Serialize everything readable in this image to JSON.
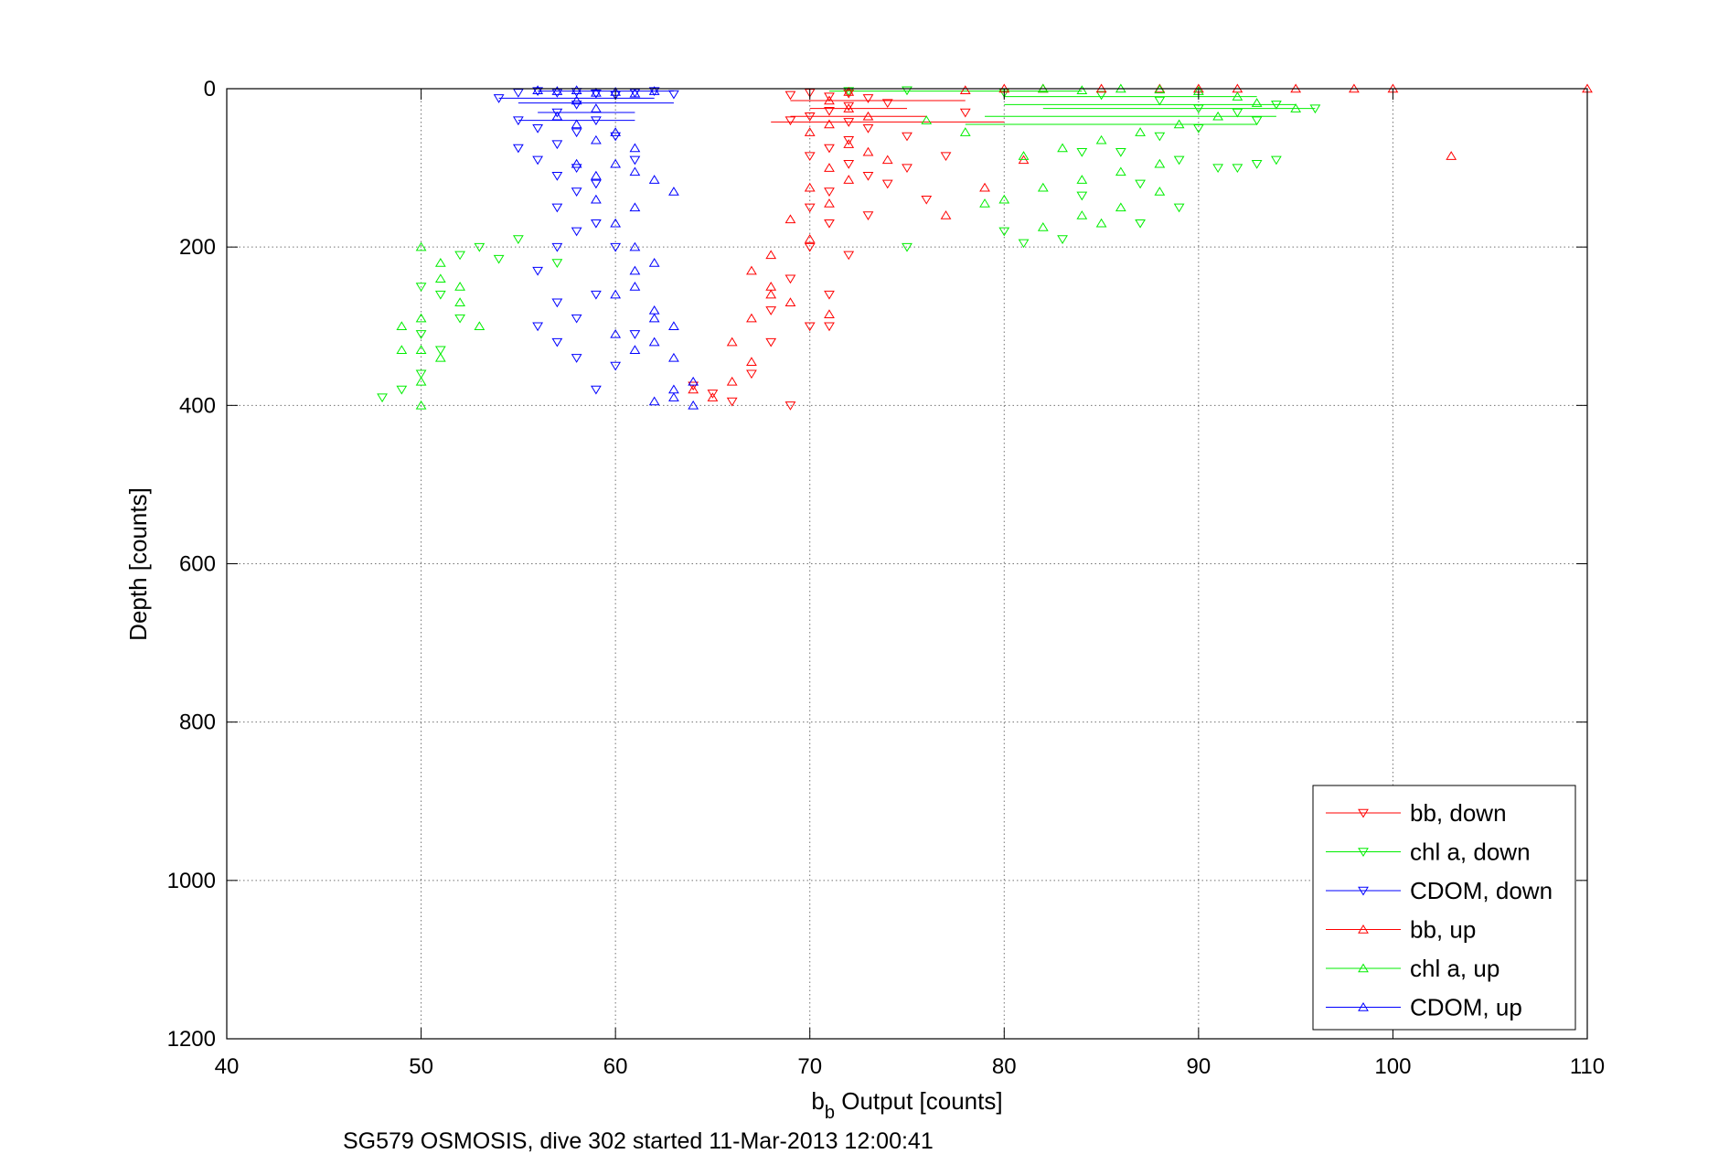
{
  "chart_data": {
    "type": "scatter",
    "title": "",
    "xlabel_main": "b",
    "xlabel_sub": "b",
    "xlabel_rest": " Output [counts]",
    "ylabel": "Depth [counts]",
    "caption": "SG579 OSMOSIS, dive 302 started 11-Mar-2013 12:00:41",
    "xlim": [
      40,
      110
    ],
    "ylim": [
      0,
      1200
    ],
    "y_reversed": true,
    "xticks": [
      "40",
      "50",
      "60",
      "70",
      "80",
      "90",
      "100",
      "110"
    ],
    "yticks": [
      "0",
      "200",
      "400",
      "600",
      "800",
      "1000",
      "1200"
    ],
    "grid": true,
    "legend_position": "bottom-right",
    "series": [
      {
        "name": "bb, down",
        "color": "#ff0000",
        "marker": "triangle-down",
        "points": [
          [
            69,
            8
          ],
          [
            70,
            5
          ],
          [
            71,
            10
          ],
          [
            72,
            6
          ],
          [
            73,
            12
          ],
          [
            74,
            18
          ],
          [
            72,
            22
          ],
          [
            71,
            28
          ],
          [
            70,
            35
          ],
          [
            69,
            40
          ],
          [
            72,
            42
          ],
          [
            73,
            50
          ],
          [
            72,
            65
          ],
          [
            71,
            75
          ],
          [
            70,
            85
          ],
          [
            72,
            95
          ],
          [
            73,
            110
          ],
          [
            71,
            130
          ],
          [
            70,
            150
          ],
          [
            71,
            170
          ],
          [
            70,
            200
          ],
          [
            69,
            240
          ],
          [
            68,
            280
          ],
          [
            68,
            320
          ],
          [
            67,
            360
          ],
          [
            66,
            395
          ],
          [
            65,
            385
          ],
          [
            64,
            375
          ],
          [
            69,
            400
          ],
          [
            70,
            300
          ],
          [
            71,
            260
          ],
          [
            72,
            210
          ],
          [
            73,
            160
          ],
          [
            74,
            120
          ],
          [
            75,
            100
          ],
          [
            76,
            140
          ],
          [
            77,
            85
          ],
          [
            71,
            300
          ],
          [
            75,
            60
          ],
          [
            78,
            30
          ]
        ]
      },
      {
        "name": "chl a, down",
        "color": "#00ee00",
        "marker": "triangle-down",
        "points": [
          [
            72,
            3
          ],
          [
            75,
            2
          ],
          [
            80,
            5
          ],
          [
            85,
            8
          ],
          [
            88,
            15
          ],
          [
            90,
            25
          ],
          [
            92,
            30
          ],
          [
            94,
            20
          ],
          [
            96,
            25
          ],
          [
            93,
            40
          ],
          [
            90,
            50
          ],
          [
            88,
            60
          ],
          [
            86,
            80
          ],
          [
            89,
            90
          ],
          [
            91,
            100
          ],
          [
            87,
            120
          ],
          [
            84,
            135
          ],
          [
            89,
            150
          ],
          [
            87,
            170
          ],
          [
            83,
            190
          ],
          [
            81,
            195
          ],
          [
            80,
            180
          ],
          [
            75,
            200
          ],
          [
            57,
            220
          ],
          [
            55,
            190
          ],
          [
            52,
            210
          ],
          [
            51,
            260
          ],
          [
            50,
            310
          ],
          [
            50,
            360
          ],
          [
            49,
            380
          ],
          [
            48,
            390
          ],
          [
            52,
            290
          ],
          [
            53,
            200
          ],
          [
            54,
            215
          ],
          [
            50,
            250
          ],
          [
            51,
            330
          ],
          [
            94,
            90
          ],
          [
            93,
            95
          ],
          [
            92,
            100
          ],
          [
            84,
            80
          ]
        ]
      },
      {
        "name": "CDOM, down",
        "color": "#0000ff",
        "marker": "triangle-down",
        "points": [
          [
            54,
            12
          ],
          [
            55,
            5
          ],
          [
            56,
            3
          ],
          [
            57,
            5
          ],
          [
            58,
            4
          ],
          [
            59,
            6
          ],
          [
            60,
            8
          ],
          [
            61,
            5
          ],
          [
            62,
            3
          ],
          [
            63,
            7
          ],
          [
            58,
            20
          ],
          [
            57,
            30
          ],
          [
            59,
            40
          ],
          [
            58,
            55
          ],
          [
            57,
            70
          ],
          [
            56,
            90
          ],
          [
            58,
            100
          ],
          [
            59,
            120
          ],
          [
            57,
            150
          ],
          [
            58,
            180
          ],
          [
            57,
            200
          ],
          [
            56,
            230
          ],
          [
            59,
            260
          ],
          [
            58,
            290
          ],
          [
            57,
            320
          ],
          [
            56,
            300
          ],
          [
            59,
            380
          ],
          [
            60,
            350
          ],
          [
            61,
            310
          ],
          [
            58,
            340
          ],
          [
            57,
            270
          ],
          [
            60,
            200
          ],
          [
            55,
            75
          ],
          [
            56,
            50
          ],
          [
            57,
            110
          ],
          [
            58,
            130
          ],
          [
            60,
            60
          ],
          [
            61,
            90
          ],
          [
            59,
            170
          ],
          [
            55,
            40
          ]
        ]
      },
      {
        "name": "bb, up",
        "color": "#ff0000",
        "marker": "triangle-up",
        "points": [
          [
            110,
            0
          ],
          [
            100,
            0
          ],
          [
            98,
            0
          ],
          [
            95,
            0
          ],
          [
            92,
            0
          ],
          [
            90,
            0
          ],
          [
            88,
            0
          ],
          [
            85,
            0
          ],
          [
            82,
            0
          ],
          [
            80,
            0
          ],
          [
            78,
            2
          ],
          [
            72,
            4
          ],
          [
            71,
            15
          ],
          [
            72,
            25
          ],
          [
            73,
            35
          ],
          [
            71,
            45
          ],
          [
            70,
            55
          ],
          [
            72,
            70
          ],
          [
            73,
            80
          ],
          [
            74,
            90
          ],
          [
            71,
            100
          ],
          [
            72,
            115
          ],
          [
            70,
            125
          ],
          [
            71,
            145
          ],
          [
            69,
            165
          ],
          [
            70,
            190
          ],
          [
            68,
            210
          ],
          [
            67,
            230
          ],
          [
            68,
            260
          ],
          [
            67,
            290
          ],
          [
            66,
            320
          ],
          [
            67,
            345
          ],
          [
            66,
            370
          ],
          [
            65,
            390
          ],
          [
            64,
            380
          ],
          [
            68,
            250
          ],
          [
            69,
            270
          ],
          [
            71,
            285
          ],
          [
            103,
            85
          ],
          [
            77,
            160
          ],
          [
            79,
            125
          ],
          [
            81,
            90
          ]
        ]
      },
      {
        "name": "chl a, up",
        "color": "#00ee00",
        "marker": "triangle-up",
        "points": [
          [
            82,
            0
          ],
          [
            84,
            2
          ],
          [
            86,
            0
          ],
          [
            88,
            1
          ],
          [
            90,
            3
          ],
          [
            92,
            10
          ],
          [
            93,
            18
          ],
          [
            95,
            25
          ],
          [
            91,
            35
          ],
          [
            89,
            45
          ],
          [
            87,
            55
          ],
          [
            85,
            65
          ],
          [
            83,
            75
          ],
          [
            81,
            85
          ],
          [
            88,
            95
          ],
          [
            86,
            105
          ],
          [
            84,
            115
          ],
          [
            82,
            125
          ],
          [
            80,
            140
          ],
          [
            79,
            145
          ],
          [
            82,
            175
          ],
          [
            84,
            160
          ],
          [
            86,
            150
          ],
          [
            88,
            130
          ],
          [
            85,
            170
          ],
          [
            78,
            55
          ],
          [
            76,
            40
          ],
          [
            50,
            200
          ],
          [
            51,
            240
          ],
          [
            52,
            270
          ],
          [
            50,
            290
          ],
          [
            49,
            300
          ],
          [
            50,
            330
          ],
          [
            50,
            370
          ],
          [
            51,
            340
          ],
          [
            52,
            250
          ],
          [
            53,
            300
          ],
          [
            49,
            330
          ],
          [
            50,
            400
          ],
          [
            51,
            220
          ]
        ]
      },
      {
        "name": "CDOM, up",
        "color": "#0000ff",
        "marker": "triangle-up",
        "points": [
          [
            56,
            2
          ],
          [
            57,
            3
          ],
          [
            58,
            2
          ],
          [
            59,
            5
          ],
          [
            60,
            4
          ],
          [
            61,
            6
          ],
          [
            62,
            3
          ],
          [
            58,
            15
          ],
          [
            59,
            25
          ],
          [
            57,
            35
          ],
          [
            58,
            45
          ],
          [
            60,
            55
          ],
          [
            59,
            65
          ],
          [
            61,
            75
          ],
          [
            60,
            95
          ],
          [
            61,
            105
          ],
          [
            62,
            115
          ],
          [
            63,
            130
          ],
          [
            61,
            150
          ],
          [
            60,
            170
          ],
          [
            61,
            200
          ],
          [
            62,
            220
          ],
          [
            61,
            250
          ],
          [
            62,
            280
          ],
          [
            63,
            300
          ],
          [
            62,
            320
          ],
          [
            63,
            340
          ],
          [
            64,
            370
          ],
          [
            63,
            390
          ],
          [
            62,
            395
          ],
          [
            64,
            400
          ],
          [
            63,
            380
          ],
          [
            60,
            260
          ],
          [
            61,
            230
          ],
          [
            62,
            290
          ],
          [
            59,
            140
          ],
          [
            60,
            310
          ],
          [
            58,
            95
          ],
          [
            59,
            110
          ],
          [
            61,
            330
          ]
        ]
      }
    ],
    "lines": [
      {
        "color": "#ff0000",
        "y": 0,
        "x": [
          68,
          110
        ]
      },
      {
        "color": "#ff0000",
        "y": 15,
        "x": [
          69,
          78
        ]
      },
      {
        "color": "#ff0000",
        "y": 25,
        "x": [
          70,
          75
        ]
      },
      {
        "color": "#ff0000",
        "y": 35,
        "x": [
          69,
          76
        ]
      },
      {
        "color": "#ff0000",
        "y": 42,
        "x": [
          68,
          80
        ]
      },
      {
        "color": "#00ee00",
        "y": 3,
        "x": [
          71,
          84
        ]
      },
      {
        "color": "#00ee00",
        "y": 10,
        "x": [
          80,
          93
        ]
      },
      {
        "color": "#00ee00",
        "y": 20,
        "x": [
          80,
          95
        ]
      },
      {
        "color": "#00ee00",
        "y": 25,
        "x": [
          82,
          96
        ]
      },
      {
        "color": "#00ee00",
        "y": 35,
        "x": [
          79,
          94
        ]
      },
      {
        "color": "#00ee00",
        "y": 45,
        "x": [
          78,
          93
        ]
      },
      {
        "color": "#0000ff",
        "y": 3,
        "x": [
          56,
          63
        ]
      },
      {
        "color": "#0000ff",
        "y": 12,
        "x": [
          54,
          62
        ]
      },
      {
        "color": "#0000ff",
        "y": 18,
        "x": [
          55,
          63
        ]
      },
      {
        "color": "#0000ff",
        "y": 30,
        "x": [
          56,
          61
        ]
      },
      {
        "color": "#0000ff",
        "y": 40,
        "x": [
          55,
          61
        ]
      }
    ]
  }
}
